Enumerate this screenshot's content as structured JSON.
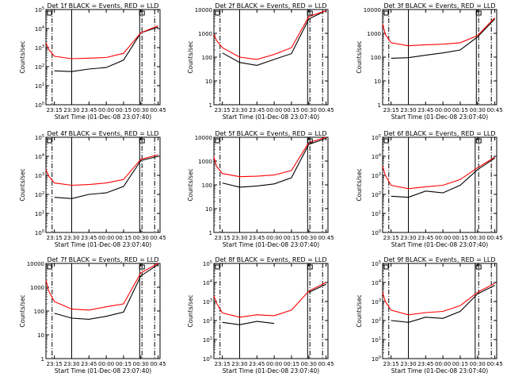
{
  "colors": {
    "events": "#000000",
    "lld": "#ff0000",
    "background": "#ffffff"
  },
  "shared": {
    "x_tick_labels": [
      "23:15",
      "23:30",
      "23:45",
      "00:00",
      "00:15",
      "00:30",
      "00:45"
    ],
    "xlabel": "Start Time (01-Dec-08 23:07:40)",
    "ylabel": "Counts/sec"
  },
  "chart_data": [
    {
      "type": "line",
      "title": "Det 1f BLACK = Events, RED = LLD",
      "log_y": true,
      "ylim": [
        1,
        100000
      ],
      "y_tick_labels": [
        "10^0",
        "10^1",
        "10^2",
        "10^3",
        "10^4",
        "10^5"
      ],
      "y_tick_values": [
        1,
        10,
        100,
        1000,
        10000,
        100000
      ],
      "x": [
        "23:07:40",
        "23:10",
        "23:15",
        "23:30",
        "23:45",
        "00:00",
        "00:15",
        "00:30",
        "00:45"
      ],
      "solid_vlines": [
        "23:30",
        "00:29"
      ],
      "dashdot_vlines": [
        "23:13",
        "00:31",
        "00:42"
      ],
      "series": [
        {
          "name": "Events",
          "values": [
            null,
            null,
            60,
            55,
            75,
            90,
            220,
            6000,
            12000
          ]
        },
        {
          "name": "LLD",
          "values": [
            1800,
            800,
            350,
            260,
            280,
            300,
            500,
            6000,
            14000
          ]
        }
      ]
    },
    {
      "type": "line",
      "title": "Det 2f BLACK = Events, RED = LLD",
      "log_y": true,
      "ylim": [
        1,
        10000
      ],
      "y_tick_labels": [
        "1",
        "10",
        "100",
        "1000",
        "10000"
      ],
      "y_tick_values": [
        1,
        10,
        100,
        1000,
        10000
      ],
      "x": [
        "23:07:40",
        "23:10",
        "23:15",
        "23:30",
        "23:45",
        "00:00",
        "00:15",
        "00:30",
        "00:45"
      ],
      "solid_vlines": [
        "23:30",
        "00:29"
      ],
      "dashdot_vlines": [
        "23:13",
        "00:31",
        "00:42"
      ],
      "series": [
        {
          "name": "Events",
          "values": [
            null,
            null,
            150,
            60,
            45,
            80,
            140,
            4000,
            9000
          ]
        },
        {
          "name": "LLD",
          "values": [
            900,
            500,
            250,
            100,
            80,
            130,
            250,
            5000,
            9000
          ]
        }
      ]
    },
    {
      "type": "line",
      "title": "Det 3f BLACK = Events, RED = LLD",
      "log_y": true,
      "ylim": [
        1,
        10000
      ],
      "y_tick_labels": [
        "1",
        "10",
        "100",
        "1000",
        "10000"
      ],
      "y_tick_values": [
        1,
        10,
        100,
        1000,
        10000
      ],
      "x": [
        "23:07:40",
        "23:10",
        "23:15",
        "23:30",
        "23:45",
        "00:00",
        "00:15",
        "00:30",
        "00:45"
      ],
      "solid_vlines": [
        "23:30",
        "00:29"
      ],
      "dashdot_vlines": [
        "23:13",
        "00:31",
        "00:42"
      ],
      "series": [
        {
          "name": "Events",
          "values": [
            null,
            null,
            90,
            95,
            120,
            150,
            200,
            700,
            4000
          ]
        },
        {
          "name": "LLD",
          "values": [
            2500,
            900,
            400,
            300,
            330,
            350,
            400,
            800,
            4500
          ]
        }
      ]
    },
    {
      "type": "line",
      "title": "Det 4f BLACK = Events, RED = LLD",
      "log_y": true,
      "ylim": [
        1,
        100000
      ],
      "y_tick_labels": [
        "10^0",
        "10^1",
        "10^2",
        "10^3",
        "10^4",
        "10^5"
      ],
      "y_tick_values": [
        1,
        10,
        100,
        1000,
        10000,
        100000
      ],
      "x": [
        "23:07:40",
        "23:10",
        "23:15",
        "23:30",
        "23:45",
        "00:00",
        "00:15",
        "00:30",
        "00:45"
      ],
      "solid_vlines": [
        "23:30",
        "00:29"
      ],
      "dashdot_vlines": [
        "23:13",
        "00:31",
        "00:42"
      ],
      "series": [
        {
          "name": "Events",
          "values": [
            null,
            null,
            70,
            60,
            100,
            120,
            260,
            6000,
            10000
          ]
        },
        {
          "name": "LLD",
          "values": [
            2000,
            900,
            400,
            300,
            330,
            400,
            600,
            7000,
            12000
          ]
        }
      ]
    },
    {
      "type": "line",
      "title": "Det 5f BLACK = Events, RED = LLD",
      "log_y": true,
      "ylim": [
        1,
        10000
      ],
      "y_tick_labels": [
        "1",
        "10",
        "100",
        "1000",
        "10000"
      ],
      "y_tick_values": [
        1,
        10,
        100,
        1000,
        10000
      ],
      "x": [
        "23:07:40",
        "23:10",
        "23:15",
        "23:30",
        "23:45",
        "00:00",
        "00:15",
        "00:30",
        "00:45"
      ],
      "solid_vlines": [
        "23:30",
        "00:29"
      ],
      "dashdot_vlines": [
        "23:13",
        "00:31",
        "00:42"
      ],
      "series": [
        {
          "name": "Events",
          "values": [
            null,
            null,
            120,
            80,
            90,
            110,
            200,
            5000,
            9000
          ]
        },
        {
          "name": "LLD",
          "values": [
            1500,
            600,
            300,
            220,
            230,
            260,
            400,
            6000,
            10000
          ]
        }
      ]
    },
    {
      "type": "line",
      "title": "Det 6f BLACK = Events, RED = LLD",
      "log_y": true,
      "ylim": [
        1,
        100000
      ],
      "y_tick_labels": [
        "10^0",
        "10^1",
        "10^2",
        "10^3",
        "10^4",
        "10^5"
      ],
      "y_tick_values": [
        1,
        10,
        100,
        1000,
        10000,
        100000
      ],
      "x": [
        "23:07:40",
        "23:10",
        "23:15",
        "23:30",
        "23:45",
        "00:00",
        "00:15",
        "00:30",
        "00:45"
      ],
      "solid_vlines": [
        "23:30",
        "00:28"
      ],
      "dashdot_vlines": [
        "23:13",
        "00:31",
        "00:42"
      ],
      "series": [
        {
          "name": "Events",
          "values": [
            null,
            null,
            80,
            70,
            150,
            120,
            300,
            2000,
            8000
          ]
        },
        {
          "name": "LLD",
          "values": [
            3000,
            1000,
            300,
            200,
            250,
            300,
            600,
            2500,
            9000
          ]
        }
      ]
    },
    {
      "type": "line",
      "title": "Det 7f BLACK = Events, RED = LLD",
      "log_y": true,
      "ylim": [
        1,
        10000
      ],
      "y_tick_labels": [
        "1",
        "10",
        "100",
        "1000",
        "10000"
      ],
      "y_tick_values": [
        1,
        10,
        100,
        1000,
        10000
      ],
      "x": [
        "23:07:40",
        "23:10",
        "23:15",
        "23:30",
        "23:45",
        "00:00",
        "00:15",
        "00:30",
        "00:45"
      ],
      "solid_vlines": [
        "23:30",
        "00:29"
      ],
      "dashdot_vlines": [
        "23:13",
        "00:31",
        "00:42"
      ],
      "series": [
        {
          "name": "Events",
          "values": [
            null,
            null,
            80,
            50,
            45,
            60,
            90,
            3000,
            9000
          ]
        },
        {
          "name": "LLD",
          "values": [
            2000,
            700,
            250,
            120,
            110,
            150,
            200,
            4000,
            10000
          ]
        }
      ]
    },
    {
      "type": "line",
      "title": "Det 8f BLACK = Events, RED = LLD",
      "log_y": true,
      "ylim": [
        1,
        100000
      ],
      "y_tick_labels": [
        "10^0",
        "10^1",
        "10^2",
        "10^3",
        "10^4",
        "10^5"
      ],
      "y_tick_values": [
        1,
        10,
        100,
        1000,
        10000,
        100000
      ],
      "x": [
        "23:07:40",
        "23:10",
        "23:15",
        "23:30",
        "23:45",
        "00:00",
        "00:15",
        "00:30",
        "00:45"
      ],
      "solid_vlines": [
        "23:30",
        "00:29"
      ],
      "dashdot_vlines": [
        "23:13",
        "00:31",
        "00:42"
      ],
      "series": [
        {
          "name": "Events",
          "values": [
            null,
            null,
            80,
            60,
            90,
            70,
            null,
            3000,
            8000
          ]
        },
        {
          "name": "LLD",
          "values": [
            2000,
            800,
            250,
            150,
            200,
            180,
            350,
            3500,
            10000
          ]
        }
      ]
    },
    {
      "type": "line",
      "title": "Det 9f BLACK = Events, RED = LLD",
      "log_y": true,
      "ylim": [
        1,
        100000
      ],
      "y_tick_labels": [
        "10^0",
        "10^1",
        "10^2",
        "10^3",
        "10^4",
        "10^5"
      ],
      "y_tick_values": [
        1,
        10,
        100,
        1000,
        10000,
        100000
      ],
      "x": [
        "23:07:40",
        "23:10",
        "23:15",
        "23:30",
        "23:45",
        "00:00",
        "00:15",
        "00:30",
        "00:45"
      ],
      "solid_vlines": [
        "23:30",
        "00:28"
      ],
      "dashdot_vlines": [
        "23:13",
        "00:31",
        "00:42"
      ],
      "series": [
        {
          "name": "Events",
          "values": [
            null,
            null,
            100,
            80,
            150,
            130,
            300,
            2500,
            7000
          ]
        },
        {
          "name": "LLD",
          "values": [
            3000,
            1000,
            350,
            200,
            260,
            300,
            600,
            3000,
            9000
          ]
        }
      ]
    }
  ]
}
